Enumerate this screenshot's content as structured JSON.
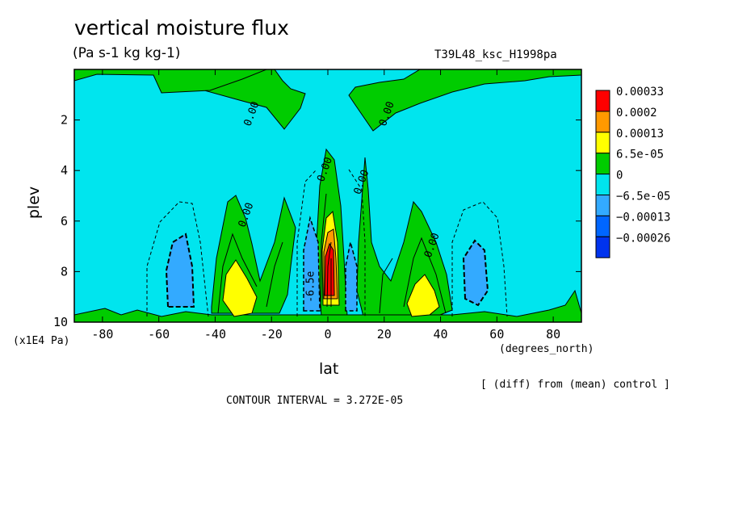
{
  "figure": {
    "title": "vertical moisture flux",
    "units": "(Pa s-1 kg kg-1)",
    "run_label": "T39L48_ksc_H1998pa",
    "x_unit_note": "(x1E4 Pa)",
    "x_unit": "(degrees_north)",
    "diff_note": "[ (diff) from (mean) control ]",
    "contour_interval": "CONTOUR INTERVAL = 3.272E-05"
  },
  "chart_data": {
    "type": "heatmap",
    "title": "vertical moisture flux",
    "subtitle": "(Pa s-1 kg kg-1)",
    "xlabel": "lat",
    "ylabel": "plev",
    "xlim": [
      -90,
      90
    ],
    "ylim": [
      0,
      10
    ],
    "y_inverted": true,
    "x_ticks": [
      "-80",
      "-60",
      "-40",
      "-20",
      "0",
      "20",
      "40",
      "60",
      "80"
    ],
    "x_tick_values": [
      -80,
      -60,
      -40,
      -20,
      0,
      20,
      40,
      60,
      80
    ],
    "y_ticks": [
      "2",
      "4",
      "6",
      "8",
      "10"
    ],
    "y_tick_values": [
      2,
      4,
      6,
      8,
      10
    ],
    "background_level_color": "#00e5ee",
    "legend": [
      {
        "label": "0.00033",
        "color": "#ff0000"
      },
      {
        "label": "0.0002",
        "color": "#ff9900"
      },
      {
        "label": "0.00013",
        "color": "#ffff00"
      },
      {
        "label": "6.5e-05",
        "color": "#00cc00"
      },
      {
        "label": "0",
        "color": "#00e5ee"
      },
      {
        "label": "−6.5e-05",
        "color": "#33aaff"
      },
      {
        "label": "−0.00013",
        "color": "#0066ff"
      },
      {
        "label": "−0.00026",
        "color": "#0033ee"
      }
    ],
    "contour_labels": [
      {
        "text": "0.00",
        "lat": -26,
        "p": 1.8
      },
      {
        "text": "0.00",
        "lat": 22,
        "p": 1.8
      },
      {
        "text": "0.00",
        "lat": -28,
        "p": 5.8
      },
      {
        "text": "0.00",
        "lat": 0,
        "p": 4.0
      },
      {
        "text": "0.00",
        "lat": 13,
        "p": 4.5
      },
      {
        "text": "0.00",
        "lat": 38,
        "p": 7.0
      },
      {
        "text": "-6.5e",
        "lat": -5,
        "p": 8.6
      }
    ],
    "regions": [
      {
        "name": "upper-green-band",
        "level": "6.5e-05",
        "lat_range": [
          -88,
          88
        ],
        "p_range": [
          0,
          3
        ]
      },
      {
        "name": "sh-subtropical-max",
        "level": "0.00013",
        "lat": -31,
        "p": 9.2
      },
      {
        "name": "nh-subtropical-max",
        "level": "0.00013",
        "lat": 31,
        "p": 9.2
      },
      {
        "name": "equatorial-max",
        "level": "0.00033",
        "lat": 1,
        "p": 8.2
      },
      {
        "name": "sh-midlat-min",
        "level": "−6.5e-05",
        "lat": -52,
        "p": 7.9
      },
      {
        "name": "nh-midlat-min",
        "level": "−6.5e-05",
        "lat": 51,
        "p": 8.0
      }
    ]
  }
}
